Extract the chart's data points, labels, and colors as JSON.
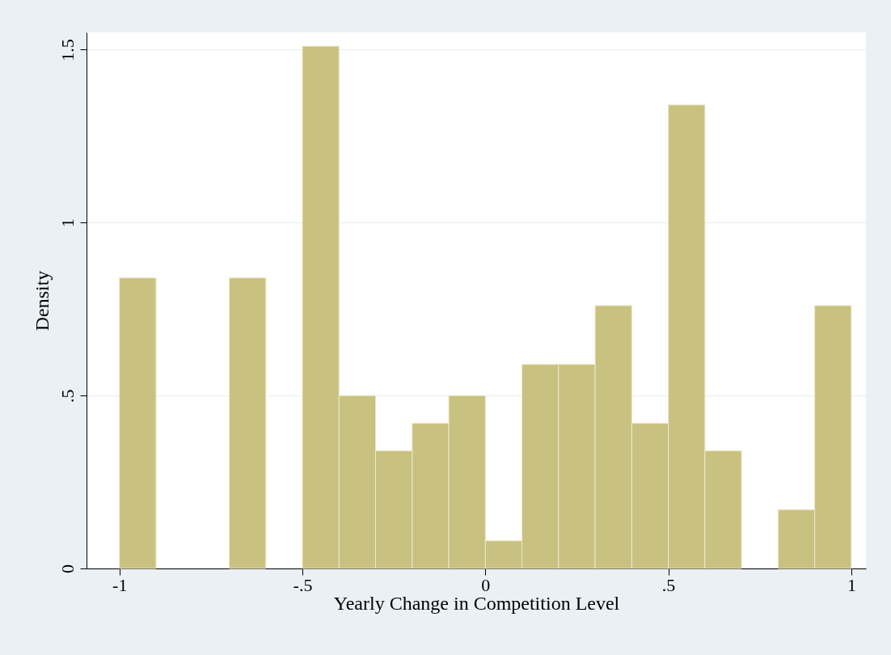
{
  "chart_data": {
    "type": "histogram",
    "xlabel": "Yearly Change in Competition Level",
    "ylabel": "Density",
    "bins": [
      -1,
      -0.9,
      -0.8,
      -0.7,
      -0.6,
      -0.5,
      -0.4,
      -0.3,
      -0.2,
      -0.1,
      0,
      0.1,
      0.2,
      0.3,
      0.4,
      0.5,
      0.6,
      0.7,
      0.8,
      0.9,
      1
    ],
    "values": [
      0.84,
      0,
      0,
      0.84,
      0,
      1.51,
      0.5,
      0.34,
      0.42,
      0.5,
      0.08,
      0.59,
      0.59,
      0.76,
      0.42,
      1.34,
      0.34,
      0,
      0.17,
      0.76
    ],
    "color": "#c9c17f",
    "xlim": [
      -1.09,
      1.04
    ],
    "ylim": [
      0,
      1.55
    ],
    "xticks": [
      -1,
      {
        "value": -0.5,
        "label": "-.5"
      },
      0,
      {
        "value": 0.5,
        "label": ".5"
      },
      1
    ],
    "yticks": [
      0,
      {
        "value": 0.5,
        "label": ".5"
      },
      1,
      {
        "value": 1.5,
        "label": "1.5"
      }
    ],
    "grid": "y"
  }
}
